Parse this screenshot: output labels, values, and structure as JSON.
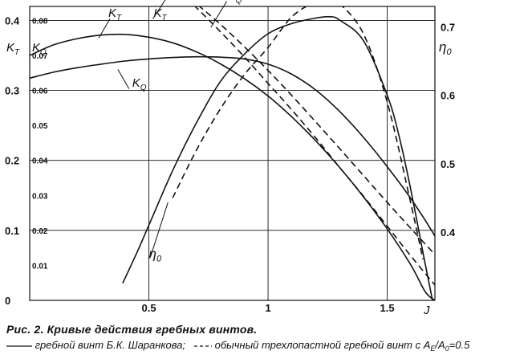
{
  "chart_data": {
    "type": "line",
    "title": "",
    "xlabel": "J",
    "ylabel_left_primary": "K",
    "ylabel_left_primary_sub": "T",
    "ylabel_left_secondary": "K",
    "ylabel_left_secondary_sub": "Q",
    "ylabel_right": "η",
    "ylabel_right_sub": "0",
    "xlim": [
      0,
      1.7
    ],
    "ylim_kt": [
      0,
      0.42
    ],
    "ylim_kq": [
      0,
      0.084
    ],
    "ylim_eta": [
      0.3,
      0.73
    ],
    "grid": true,
    "x_ticks": [
      "0.5",
      "1",
      "1.5"
    ],
    "x_tick_values": [
      0.5,
      1.0,
      1.5
    ],
    "kt_ticks": [
      "0",
      "0.1",
      "0.2",
      "0.3",
      "0.4"
    ],
    "kt_tick_values": [
      0,
      0.1,
      0.2,
      0.3,
      0.4
    ],
    "kq_ticks": [
      "0.01",
      "0.02",
      "0.03",
      "0.04",
      "0.05",
      "0.06",
      "0.07",
      "0.08"
    ],
    "kq_tick_values": [
      0.01,
      0.02,
      0.03,
      0.04,
      0.05,
      0.06,
      0.07,
      0.08
    ],
    "eta_ticks": [
      "0.4",
      "0.5",
      "0.6",
      "0.7"
    ],
    "eta_tick_values": [
      0.4,
      0.5,
      0.6,
      0.7
    ],
    "series": [
      {
        "axis": "kt",
        "style": "solid",
        "x": [
          0,
          0.1,
          0.2,
          0.3,
          0.4,
          0.5,
          0.6,
          0.7,
          0.8,
          0.9,
          1.0,
          1.1,
          1.2,
          1.3,
          1.4,
          1.5,
          1.6,
          1.66,
          1.7
        ],
        "y": [
          0.35,
          0.365,
          0.374,
          0.379,
          0.38,
          0.376,
          0.368,
          0.355,
          0.338,
          0.317,
          0.292,
          0.262,
          0.228,
          0.19,
          0.148,
          0.102,
          0.05,
          0.012,
          0.0
        ]
      },
      {
        "axis": "kq",
        "style": "solid",
        "x": [
          0,
          0.1,
          0.2,
          0.3,
          0.4,
          0.5,
          0.6,
          0.7,
          0.8,
          0.9,
          1.0,
          1.1,
          1.2,
          1.3,
          1.4,
          1.5,
          1.6,
          1.7,
          1.76
        ],
        "y": [
          0.0635,
          0.0652,
          0.0665,
          0.0675,
          0.0684,
          0.069,
          0.0694,
          0.0696,
          0.0695,
          0.069,
          0.0675,
          0.0646,
          0.0601,
          0.054,
          0.0466,
          0.0382,
          0.029,
          0.0184,
          0.0108
        ]
      },
      {
        "axis": "eta",
        "style": "solid",
        "x": [
          0.39,
          0.45,
          0.5,
          0.6,
          0.7,
          0.8,
          0.9,
          1.0,
          1.1,
          1.2,
          1.26,
          1.3,
          1.4,
          1.5,
          1.55,
          1.6,
          1.65,
          1.69
        ],
        "y": [
          0.325,
          0.37,
          0.41,
          0.49,
          0.56,
          0.62,
          0.66,
          0.69,
          0.705,
          0.713,
          0.715,
          0.71,
          0.68,
          0.6,
          0.54,
          0.46,
          0.37,
          0.3
        ]
      },
      {
        "axis": "kt",
        "style": "dashed",
        "x": [
          0.49,
          0.6,
          0.7,
          0.8,
          0.9,
          1.0,
          1.1,
          1.2,
          1.3,
          1.4,
          1.5,
          1.6,
          1.7,
          1.76
        ],
        "y": [
          0.48,
          0.45,
          0.418,
          0.384,
          0.348,
          0.31,
          0.272,
          0.232,
          0.19,
          0.149,
          0.106,
          0.063,
          0.022,
          0.0
        ]
      },
      {
        "axis": "kq",
        "style": "dashed",
        "x": [
          0.49,
          0.6,
          0.7,
          0.8,
          0.9,
          1.0,
          1.1,
          1.2,
          1.3,
          1.4,
          1.5,
          1.6,
          1.7,
          1.77
        ],
        "y": [
          0.0945,
          0.0898,
          0.0847,
          0.0789,
          0.0725,
          0.0657,
          0.0585,
          0.051,
          0.0434,
          0.0357,
          0.028,
          0.0205,
          0.0131,
          0.0082
        ]
      },
      {
        "axis": "eta",
        "style": "dashed",
        "x": [
          0.6,
          0.7,
          0.8,
          0.9,
          1.0,
          1.1,
          1.2,
          1.25,
          1.3,
          1.4,
          1.5,
          1.6,
          1.65
        ],
        "y": [
          0.45,
          0.52,
          0.58,
          0.63,
          0.67,
          0.715,
          0.737,
          0.74,
          0.734,
          0.69,
          0.59,
          0.44,
          0.36
        ]
      }
    ],
    "curve_labels": [
      {
        "name": "K",
        "sub": "T",
        "x": 0.33,
        "kt": 0.405
      },
      {
        "name": "K",
        "sub": "Q",
        "x": 0.43,
        "kt": 0.305
      },
      {
        "name": "K",
        "sub": "T",
        "x": 0.52,
        "kt": 0.405
      },
      {
        "name": "K",
        "sub": "Q",
        "x": 0.83,
        "kt": 0.43
      },
      {
        "name": "η",
        "sub": "0",
        "x": 0.5,
        "kt": 0.06
      }
    ]
  },
  "caption": {
    "title": "Рис. 2. Кривые действия  гребных винтов.",
    "solid_label": "гребной винт Б.К. Шаранкова;",
    "dashed_label_prefix": "обычный трехлопастной гребной винт с A",
    "dashed_sub1": "E",
    "dashed_mid": "/A",
    "dashed_sub2": "0",
    "dashed_suffix": "=0.5"
  }
}
